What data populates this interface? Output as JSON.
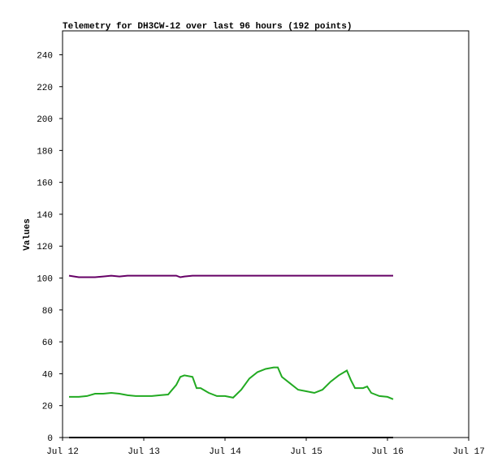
{
  "chart_data": {
    "type": "line",
    "title": "Telemetry for DH3CW-12 over last 96 hours (192 points)",
    "ylabel": "Values",
    "x": [
      0.08,
      0.2,
      0.3,
      0.4,
      0.5,
      0.6,
      0.7,
      0.8,
      0.9,
      1.0,
      1.1,
      1.2,
      1.3,
      1.4,
      1.45,
      1.5,
      1.6,
      1.65,
      1.7,
      1.8,
      1.9,
      2.0,
      2.1,
      2.2,
      2.3,
      2.4,
      2.5,
      2.6,
      2.65,
      2.7,
      2.8,
      2.9,
      3.0,
      3.1,
      3.2,
      3.3,
      3.4,
      3.5,
      3.55,
      3.6,
      3.7,
      3.75,
      3.8,
      3.9,
      4.0,
      4.07
    ],
    "series": [
      {
        "color": "#660066",
        "values": [
          101.5,
          100.5,
          100.5,
          100.5,
          101,
          101.5,
          101,
          101.5,
          101.5,
          101.5,
          101.5,
          101.5,
          101.5,
          101.5,
          100.5,
          101,
          101.5,
          101.5,
          101.5,
          101.5,
          101.5,
          101.5,
          101.5,
          101.5,
          101.5,
          101.5,
          101.5,
          101.5,
          101.5,
          101.5,
          101.5,
          101.5,
          101.5,
          101.5,
          101.5,
          101.5,
          101.5,
          101.5,
          101.5,
          101.5,
          101.5,
          101.5,
          101.5,
          101.5,
          101.5,
          101.5
        ]
      },
      {
        "color": "#22aa22",
        "values": [
          25.5,
          25.5,
          26,
          27.5,
          27.5,
          28,
          27.5,
          26.5,
          26,
          26,
          26,
          26.5,
          27,
          33,
          38,
          39,
          38,
          31,
          31,
          28,
          26,
          26,
          25,
          30,
          37,
          41,
          43,
          44,
          44,
          38,
          34,
          30,
          29,
          28,
          30,
          35,
          39,
          42,
          36,
          31,
          31,
          32,
          28,
          26,
          25.5,
          24
        ]
      },
      {
        "color": "#000000",
        "values": [
          0,
          0,
          0,
          0,
          0,
          0,
          0,
          0,
          0,
          0,
          0,
          0,
          0,
          0,
          0,
          0,
          0,
          0,
          0,
          0,
          0,
          0,
          0,
          0,
          0,
          0,
          0,
          0,
          0,
          0,
          0,
          0,
          0,
          0,
          0,
          0,
          0,
          0,
          0,
          0,
          0,
          0,
          0,
          0,
          0,
          0
        ]
      }
    ],
    "xlim": [
      0,
      5
    ],
    "xticks": [
      {
        "value": 0,
        "label": "Jul 12"
      },
      {
        "value": 1,
        "label": "Jul 13"
      },
      {
        "value": 2,
        "label": "Jul 14"
      },
      {
        "value": 3,
        "label": "Jul 15"
      },
      {
        "value": 4,
        "label": "Jul 16"
      },
      {
        "value": 5,
        "label": "Jul 17"
      }
    ],
    "ylim": [
      0,
      255
    ],
    "yticks": [
      0,
      20,
      40,
      60,
      80,
      100,
      120,
      140,
      160,
      180,
      200,
      220,
      240
    ]
  }
}
